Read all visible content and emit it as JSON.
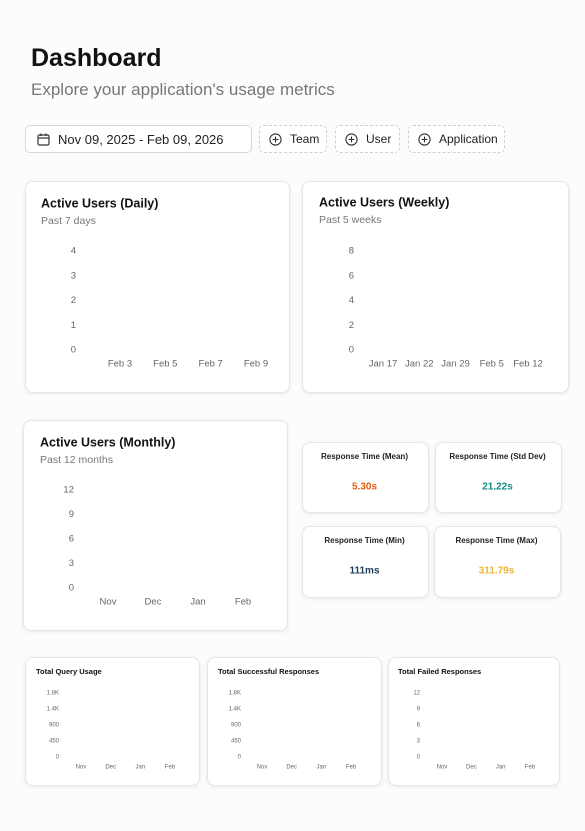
{
  "header": {
    "title": "Dashboard",
    "subtitle": "Explore your application's usage metrics"
  },
  "filters": {
    "date_range": "Nov 09, 2025 - Feb 09, 2026",
    "buttons": [
      "Team",
      "User",
      "Application"
    ]
  },
  "charts": [
    {
      "type": "bar",
      "title": "Active Users (Daily)",
      "subtitle": "Past 7 days",
      "categories": [
        "Feb 3",
        null,
        "Feb 5",
        null,
        "Feb 7",
        null,
        "Feb 9"
      ],
      "values": [
        0,
        null,
        0,
        0,
        0,
        null,
        null
      ],
      "color": "#e8590c",
      "ylim": [
        0,
        4
      ],
      "yticks": [
        0,
        1,
        2,
        3,
        4
      ]
    },
    {
      "type": "bar",
      "title": "Active Users (Weekly)",
      "subtitle": "Past 5 weeks",
      "categories": [
        "Jan 17",
        "Jan 22",
        "Jan 29",
        "Feb 5",
        "Feb 12"
      ],
      "ylim": [
        0,
        8
      ],
      "yticks": [
        0,
        2,
        4,
        6,
        8
      ]
    },
    {
      "type": "bar",
      "title": "Active Users (Monthly)",
      "subtitle": "Past 12 months",
      "categories": [
        "Nov",
        "Dec",
        "Jan",
        "Feb"
      ],
      "ylim": [
        0,
        12
      ],
      "yticks": [
        0,
        3,
        6,
        9,
        12
      ]
    },
    {
      "type": "bar",
      "title": "Total Query Usage",
      "categories": [
        "Nov",
        "Dec",
        "Jan",
        "Feb"
      ],
      "ylim": [
        0,
        1800
      ],
      "yticks": [
        0,
        450,
        900,
        {
          "value": 1350,
          "label": "1.4K"
        },
        {
          "value": 1800,
          "label": "1.8K"
        }
      ]
    },
    {
      "type": "bar",
      "title": "Total Successful Responses",
      "categories": [
        "Nov",
        "Dec",
        "Jan",
        "Feb"
      ],
      "ylim": [
        0,
        1800
      ],
      "yticks": [
        0,
        450,
        900,
        {
          "value": 1350,
          "label": "1.4K"
        },
        {
          "value": 1800,
          "label": "1.8K"
        }
      ]
    },
    {
      "type": "bar",
      "title": "Total Failed Responses",
      "categories": [
        "Nov",
        "Dec",
        "Jan",
        "Feb"
      ],
      "ylim": [
        0,
        12
      ],
      "yticks": [
        0,
        3,
        6,
        9,
        12
      ]
    }
  ],
  "stats": [
    {
      "label": "Response Time (Mean)",
      "value": "5.30s",
      "color": "#e8590c"
    },
    {
      "label": "Response Time (Std Dev)",
      "value": "21.22s",
      "color": "#138a7e"
    },
    {
      "label": "Response Time (Min)",
      "value": "111ms",
      "color": "#1f3a5a"
    },
    {
      "label": "Response Time (Max)",
      "value": "311.79s",
      "color": "#f0b429"
    }
  ]
}
